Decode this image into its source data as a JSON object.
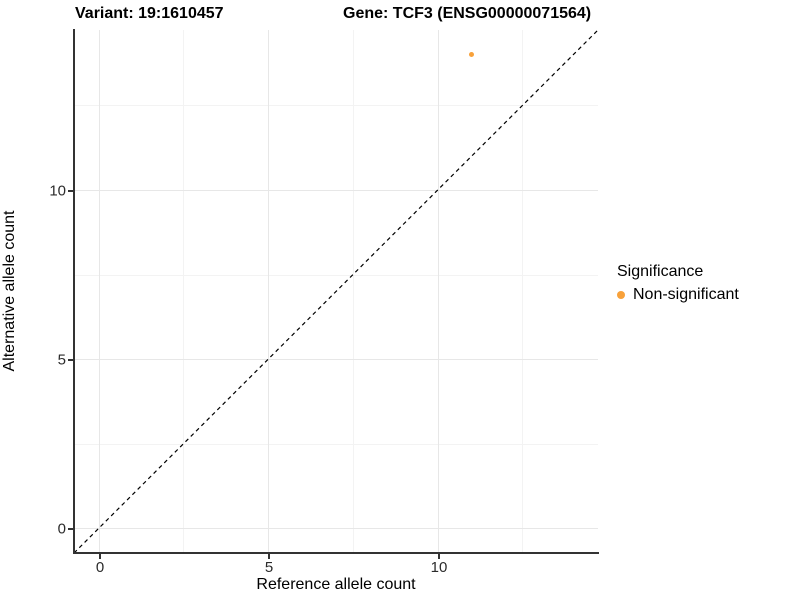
{
  "titles": {
    "variant": "Variant: 19:1610457",
    "gene": "Gene: TCF3 (ENSG00000071564)"
  },
  "axes": {
    "x": {
      "label": "Reference allele count"
    },
    "y": {
      "label": "Alternative allele count"
    }
  },
  "legend": {
    "title": "Significance",
    "items": [
      {
        "label": "Non-significant",
        "color": "#F8A13A"
      }
    ]
  },
  "colors": {
    "point_orange": "#F8A13A",
    "axis_line": "#333333",
    "grid_major": "#e7e7e7",
    "grid_minor": "#f3f3f3",
    "dashed_line": "#000000"
  },
  "chart_data": {
    "type": "scatter",
    "title": "Variant: 19:1610457 — Gene: TCF3 (ENSG00000071564)",
    "xlabel": "Reference allele count",
    "ylabel": "Alternative allele count",
    "series": [
      {
        "name": "Non-significant",
        "color": "#F8A13A",
        "points": [
          {
            "x": 11,
            "y": 14
          }
        ]
      }
    ],
    "reference_line": {
      "style": "dashed",
      "equation": "y = x",
      "color": "#000000"
    },
    "xlim": [
      -0.73,
      14.73
    ],
    "ylim": [
      -0.73,
      14.73
    ],
    "xticks": [
      0,
      5,
      10
    ],
    "yticks": [
      0,
      5,
      10
    ],
    "xticks_minor": [
      2.5,
      7.5,
      12.5
    ],
    "yticks_minor": [
      2.5,
      7.5,
      12.5
    ],
    "grid": true,
    "legend_position": "right"
  }
}
